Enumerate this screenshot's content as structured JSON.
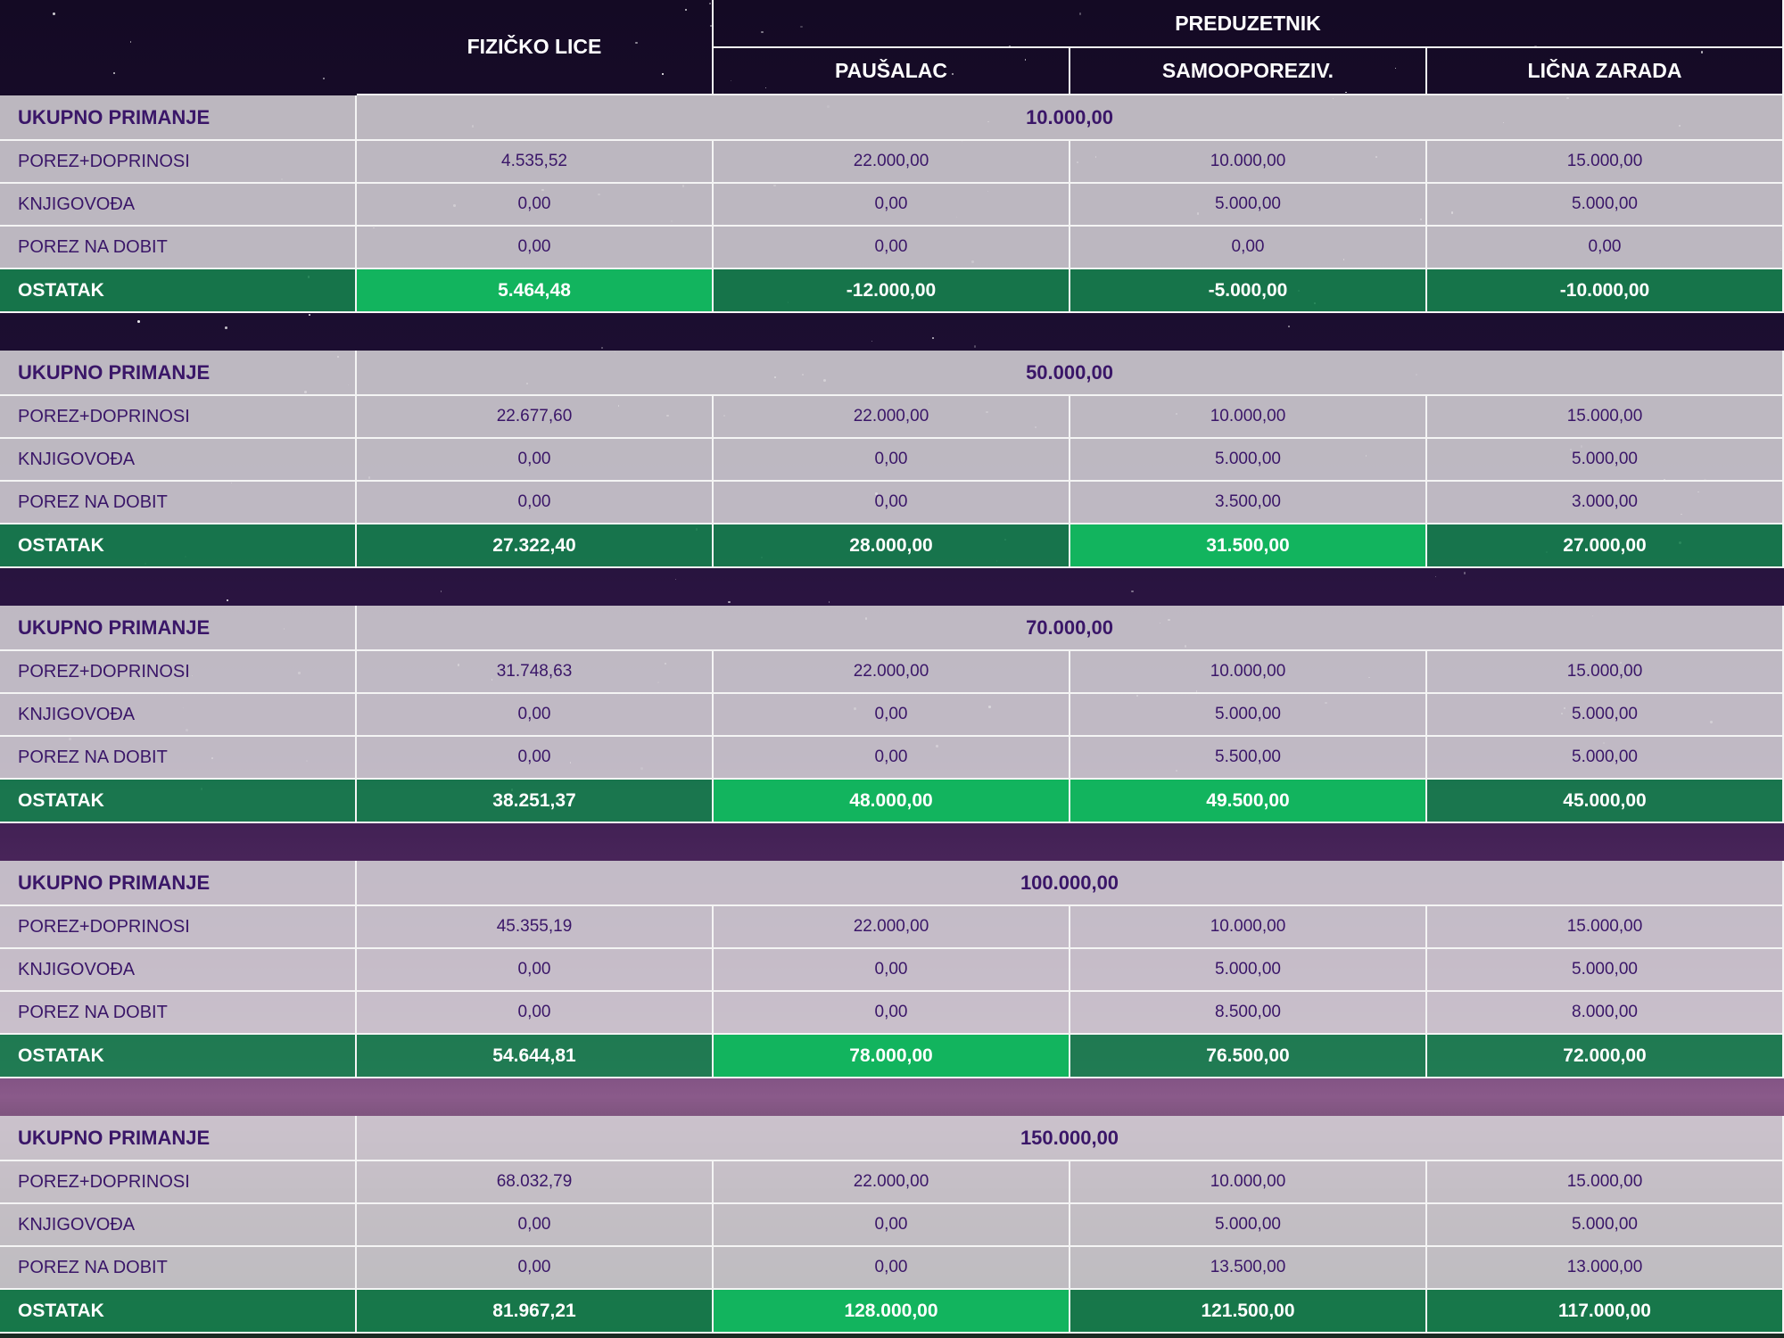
{
  "header": {
    "individual": "FIZIČKO LICE",
    "entrepreneur": "PREDUZETNIK",
    "columns": [
      "PAUŠALAC",
      "SAMOOPOREZIV.",
      "LIČNA ZARADA"
    ]
  },
  "blocks": [
    {
      "total_label": "UKUPNO PRIMANJE",
      "total": "10.000,00",
      "rows": [
        [
          "POREZ+DOPRINOSI",
          "4.535,52",
          "22.000,00",
          "10.000,00",
          "15.000,00"
        ],
        [
          "KNJIGOVOĐA",
          "0,00",
          "0,00",
          "5.000,00",
          "5.000,00"
        ],
        [
          "POREZ NA DOBIT",
          "0,00",
          "0,00",
          "0,00",
          "0,00"
        ]
      ],
      "result": [
        "OSTATAK",
        "5.464,48",
        "-12.000,00",
        "-5.000,00",
        "-10.000,00"
      ],
      "highlight": [
        1
      ]
    },
    {
      "total_label": "UKUPNO PRIMANJE",
      "total": "50.000,00",
      "rows": [
        [
          "POREZ+DOPRINOSI",
          "22.677,60",
          "22.000,00",
          "10.000,00",
          "15.000,00"
        ],
        [
          "KNJIGOVOĐA",
          "0,00",
          "0,00",
          "5.000,00",
          "5.000,00"
        ],
        [
          "POREZ NA DOBIT",
          "0,00",
          "0,00",
          "3.500,00",
          "3.000,00"
        ]
      ],
      "result": [
        "OSTATAK",
        "27.322,40",
        "28.000,00",
        "31.500,00",
        "27.000,00"
      ],
      "highlight": [
        3
      ]
    },
    {
      "total_label": "UKUPNO PRIMANJE",
      "total": "70.000,00",
      "rows": [
        [
          "POREZ+DOPRINOSI",
          "31.748,63",
          "22.000,00",
          "10.000,00",
          "15.000,00"
        ],
        [
          "KNJIGOVOĐA",
          "0,00",
          "0,00",
          "5.000,00",
          "5.000,00"
        ],
        [
          "POREZ NA DOBIT",
          "0,00",
          "0,00",
          "5.500,00",
          "5.000,00"
        ]
      ],
      "result": [
        "OSTATAK",
        "38.251,37",
        "48.000,00",
        "49.500,00",
        "45.000,00"
      ],
      "highlight": [
        2,
        3
      ]
    },
    {
      "total_label": "UKUPNO PRIMANJE",
      "total": "100.000,00",
      "rows": [
        [
          "POREZ+DOPRINOSI",
          "45.355,19",
          "22.000,00",
          "10.000,00",
          "15.000,00"
        ],
        [
          "KNJIGOVOĐA",
          "0,00",
          "0,00",
          "5.000,00",
          "5.000,00"
        ],
        [
          "POREZ NA DOBIT",
          "0,00",
          "0,00",
          "8.500,00",
          "8.000,00"
        ]
      ],
      "result": [
        "OSTATAK",
        "54.644,81",
        "78.000,00",
        "76.500,00",
        "72.000,00"
      ],
      "highlight": [
        2
      ]
    },
    {
      "total_label": "UKUPNO PRIMANJE",
      "total": "150.000,00",
      "rows": [
        [
          "POREZ+DOPRINOSI",
          "68.032,79",
          "22.000,00",
          "10.000,00",
          "15.000,00"
        ],
        [
          "KNJIGOVOĐA",
          "0,00",
          "0,00",
          "5.000,00",
          "5.000,00"
        ],
        [
          "POREZ NA DOBIT",
          "0,00",
          "0,00",
          "13.500,00",
          "13.000,00"
        ]
      ],
      "result": [
        "OSTATAK",
        "81.967,21",
        "128.000,00",
        "121.500,00",
        "117.000,00"
      ],
      "highlight": [
        2
      ]
    }
  ]
}
